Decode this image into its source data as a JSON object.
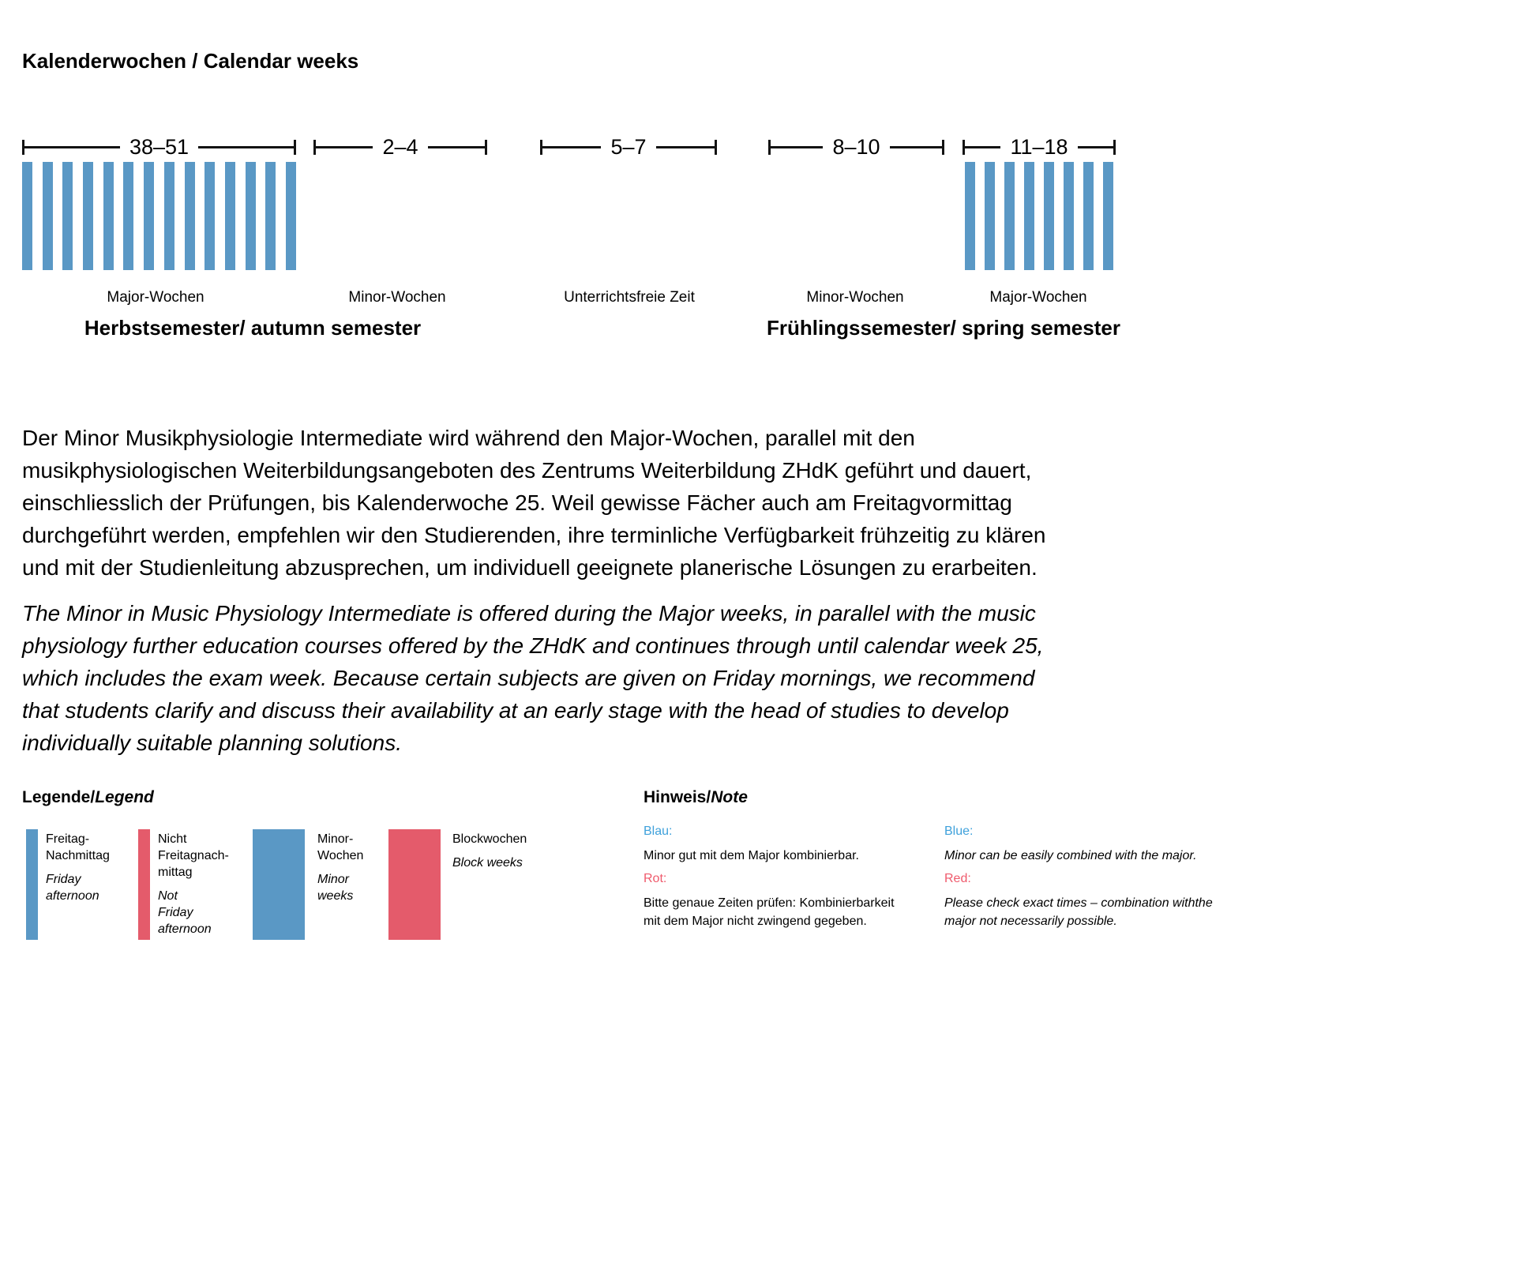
{
  "title": "Kalenderwochen / Calendar weeks",
  "colors": {
    "bar_blue": "#5A98C5",
    "bar_red": "#E45B6B",
    "text_blue": "#3FA1DB",
    "text_red": "#EF5A6C"
  },
  "timeline": {
    "segments": [
      {
        "label": "38–51",
        "week_label": "Major-Wochen",
        "bars": 14
      },
      {
        "label": "2–4",
        "week_label": "Minor-Wochen",
        "bars": 0
      },
      {
        "label": "5–7",
        "week_label": "Unterrichtsfreie Zeit",
        "bars": 0
      },
      {
        "label": "8–10",
        "week_label": "Minor-Wochen",
        "bars": 0
      },
      {
        "label": "11–18",
        "week_label": "Major-Wochen",
        "bars": 8
      }
    ],
    "autumn_semester": "Herbstsemester/ autumn semester",
    "spring_semester": "Frühlingssemester/ spring semester"
  },
  "paragraph_de": {
    "lines": [
      "Der Minor Musikphysiologie Intermediate wird während den Major-Wochen, parallel mit den",
      "musikphysiologischen Weiterbildungsangeboten des Zentrums Weiterbildung ZHdK geführt und dauert,",
      "einschliesslich der Prüfungen, bis Kalenderwoche 25. Weil gewisse Fächer auch am Freitagvormittag",
      "durchgeführt werden, empfehlen wir den Studierenden, ihre terminliche Verfügbarkeit frühzeitig zu klären",
      "und mit der Studienleitung abzusprechen, um individuell geeignete planerische Lösungen zu erarbeiten."
    ]
  },
  "paragraph_en": {
    "lines": [
      "The Minor in Music Physiology Intermediate is offered during the Major weeks, in parallel with the music",
      "physiology further education courses offered by the ZHdK and continues through until calendar week 25,",
      "which includes the exam week. Because certain subjects are given on Friday mornings, we recommend",
      "that students clarify and discuss their availability at an early stage with the head of studies to develop",
      "individually suitable planning solutions."
    ]
  },
  "legend": {
    "heading_de": "Legende/",
    "heading_en": "Legend",
    "items": [
      {
        "label_de": "Freitag-\nNachmittag",
        "label_en": "Friday\nafternoon"
      },
      {
        "label_de": "Nicht\nFreitagnach-\nmittag",
        "label_en": "Not\nFriday\nafternoon"
      },
      {
        "label_de": "Minor-\nWochen",
        "label_en": "Minor\nweeks"
      },
      {
        "label_de": "Blockwochen",
        "label_en": "Block weeks"
      }
    ]
  },
  "note": {
    "heading_de": "Hinweis/",
    "heading_en": "Note",
    "de": {
      "blue_label": "Blau:",
      "blue_text": "Minor gut mit dem Major kombinierbar.",
      "red_label": "Rot:",
      "red_text": "Bitte genaue Zeiten prüfen: Kombinierbarkeit\nmit dem Major nicht zwingend gegeben."
    },
    "en": {
      "blue_label": "Blue:",
      "blue_text": "Minor can be easily combined with the major.",
      "red_label": "Red:",
      "red_text": "Please check exact times – combination withthe\nmajor not necessarily possible."
    }
  }
}
